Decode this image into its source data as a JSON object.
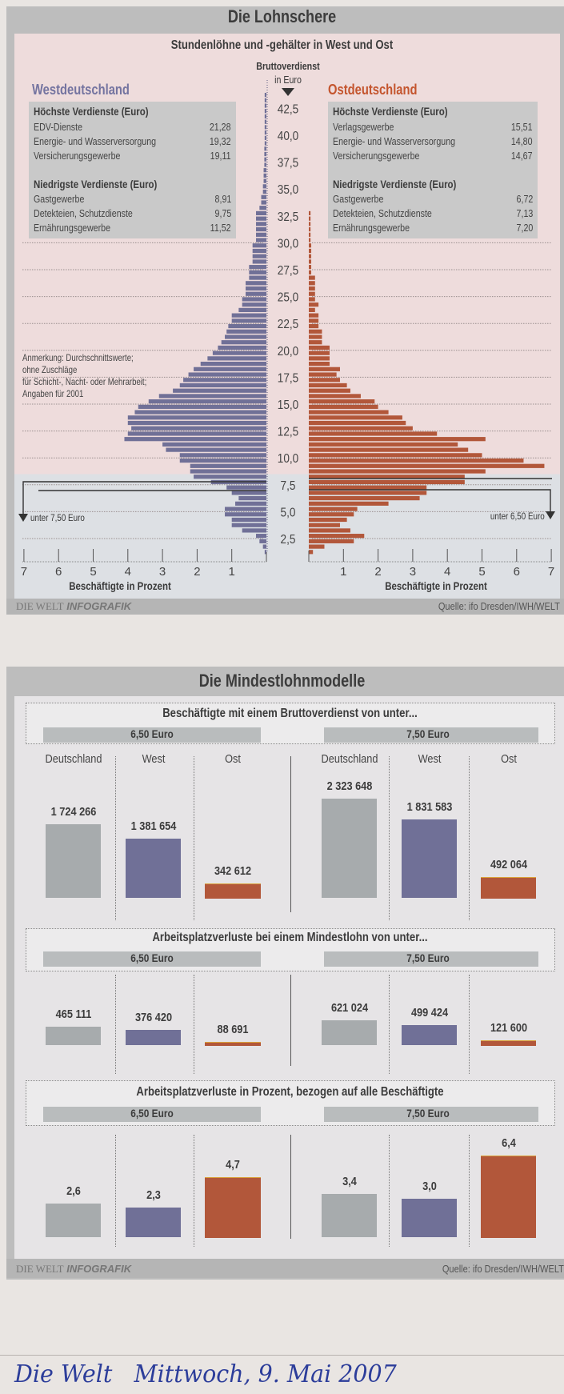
{
  "colors": {
    "west": "#707097",
    "east": "#b2573a",
    "germany": "#a7abad",
    "west_heading": "#7474a0",
    "east_heading": "#c4552e",
    "frame": "#bdbdbd",
    "panel": "#eedede"
  },
  "lohnschere": {
    "title": "Die Lohnschere",
    "subtitle": "Stundenlöhne und -gehälter in West und Ost",
    "axis_title": "Bruttoverdienst",
    "axis_unit": "in Euro",
    "west": {
      "heading": "Westdeutschland",
      "high_title": "Höchste Verdienste (Euro)",
      "high": [
        {
          "name": "EDV-Dienste",
          "value": "21,28"
        },
        {
          "name": "Energie- und Wasserversorgung",
          "value": "19,32"
        },
        {
          "name": "Versicherungsgewerbe",
          "value": "19,11"
        }
      ],
      "low_title": "Niedrigste Verdienste (Euro)",
      "low": [
        {
          "name": "Gastgewerbe",
          "value": "8,91"
        },
        {
          "name": "Detekteien, Schutzdienste",
          "value": "9,75"
        },
        {
          "name": "Ernährungsgewerbe",
          "value": "11,52"
        }
      ],
      "threshold_label": "unter 7,50 Euro",
      "xlabel": "Beschäftigte in Prozent"
    },
    "east": {
      "heading": "Ostdeutschland",
      "high_title": "Höchste Verdienste (Euro)",
      "high": [
        {
          "name": "Verlagsgewerbe",
          "value": "15,51"
        },
        {
          "name": "Energie- und Wasserversorgung",
          "value": "14,80"
        },
        {
          "name": "Versicherungsgewerbe",
          "value": "14,67"
        }
      ],
      "low_title": "Niedrigste Verdienste (Euro)",
      "low": [
        {
          "name": "Gastgewerbe",
          "value": "6,72"
        },
        {
          "name": "Detekteien, Schutzdienste",
          "value": "7,13"
        },
        {
          "name": "Ernährungsgewerbe",
          "value": "7,20"
        }
      ],
      "threshold_label": "unter 6,50 Euro",
      "xlabel": "Beschäftigte in Prozent"
    },
    "note": [
      "Anmerkung: Durchschnittswerte;",
      "ohne Zuschläge",
      "für Schicht-, Nacht- oder Mehrarbeit;",
      "Angaben für 2001"
    ],
    "y_ticks": [
      "2,5",
      "5,0",
      "7,5",
      "10,0",
      "12,5",
      "15,0",
      "17,5",
      "20,0",
      "22,5",
      "25,0",
      "27,5",
      "30,0",
      "32,5",
      "35,0",
      "37,5",
      "40,0",
      "42,5"
    ],
    "x_ticks_west": [
      "7",
      "6",
      "5",
      "4",
      "3",
      "2",
      "1"
    ],
    "x_ticks_east": [
      "1",
      "2",
      "3",
      "4",
      "5",
      "6",
      "7"
    ],
    "brand": "DIE WELT",
    "brand_suffix": "INFOGRAFIK",
    "source": "Quelle: ifo Dresden/IWH/WELT"
  },
  "chart_data": [
    {
      "type": "bar",
      "orientation": "horizontal-pyramid",
      "title": "Stundenlöhne und -gehälter in West und Ost",
      "ylabel": "Bruttoverdienst in Euro",
      "xlabel": "Beschäftigte in Prozent",
      "ylim": [
        0,
        45
      ],
      "xlim": [
        0,
        7
      ],
      "bin_start": 1.0,
      "bin_width": 0.5,
      "thresholds": {
        "west": 7.5,
        "east": 6.5
      },
      "grid": true,
      "series": [
        {
          "name": "Westdeutschland",
          "values": [
            0.05,
            0.1,
            0.2,
            0.3,
            0.7,
            1.0,
            1.0,
            1.2,
            1.2,
            0.9,
            0.8,
            1.0,
            1.15,
            1.6,
            2.1,
            2.2,
            2.2,
            2.5,
            2.5,
            2.9,
            3.0,
            4.1,
            4.0,
            3.9,
            4.0,
            4.0,
            3.8,
            3.7,
            3.4,
            3.1,
            2.7,
            2.5,
            2.4,
            2.25,
            2.1,
            1.9,
            1.7,
            1.55,
            1.4,
            1.3,
            1.2,
            1.15,
            1.1,
            1.0,
            1.0,
            0.8,
            0.7,
            0.7,
            0.6,
            0.6,
            0.6,
            0.5,
            0.5,
            0.5,
            0.4,
            0.4,
            0.4,
            0.4,
            0.3,
            0.3,
            0.3,
            0.3,
            0.3,
            0.3,
            0.2,
            0.15,
            0.15,
            0.1,
            0.1,
            0.08,
            0.08,
            0.08,
            0.06,
            0.06,
            0.06,
            0.06,
            0.05,
            0.05,
            0.05,
            0.05,
            0.05,
            0.05,
            0.05,
            0.05,
            0.05,
            0.05
          ]
        },
        {
          "name": "Ostdeutschland",
          "values": [
            0.12,
            0.45,
            1.3,
            1.6,
            1.2,
            0.9,
            1.1,
            1.3,
            1.4,
            2.3,
            3.2,
            3.4,
            3.4,
            4.5,
            4.5,
            5.1,
            6.8,
            6.2,
            5.0,
            4.6,
            4.3,
            5.1,
            3.7,
            3.0,
            2.8,
            2.7,
            2.3,
            2.0,
            1.9,
            1.5,
            1.2,
            1.1,
            0.9,
            0.8,
            0.9,
            0.6,
            0.6,
            0.6,
            0.6,
            0.38,
            0.38,
            0.38,
            0.28,
            0.28,
            0.28,
            0.18,
            0.28,
            0.18,
            0.18,
            0.18,
            0.18,
            0.18,
            0.07,
            0.07,
            0.07,
            0.07,
            0.07,
            0.07,
            0.05,
            0.05,
            0.05,
            0.05,
            0.05,
            0.05
          ]
        }
      ]
    },
    {
      "type": "bar",
      "title": "Beschäftigte mit einem Bruttoverdienst von unter...",
      "groups": [
        "6,50 Euro",
        "7,50 Euro"
      ],
      "categories": [
        "Deutschland",
        "West",
        "Ost"
      ],
      "values": [
        [
          1724266,
          1381654,
          342612
        ],
        [
          2323648,
          1831583,
          492064
        ]
      ],
      "labels": [
        [
          "1 724 266",
          "1 381 654",
          "342 612"
        ],
        [
          "2 323 648",
          "1 831 583",
          "492 064"
        ]
      ]
    },
    {
      "type": "bar",
      "title": "Arbeitsplatzverluste bei einem Mindestlohn von unter...",
      "groups": [
        "6,50 Euro",
        "7,50 Euro"
      ],
      "categories": [
        "Deutschland",
        "West",
        "Ost"
      ],
      "values": [
        [
          465111,
          376420,
          88691
        ],
        [
          621024,
          499424,
          121600
        ]
      ],
      "labels": [
        [
          "465 111",
          "376 420",
          "88 691"
        ],
        [
          "621 024",
          "499 424",
          "121 600"
        ]
      ]
    },
    {
      "type": "bar",
      "title": "Arbeitsplatzverluste in Prozent, bezogen auf alle Beschäftigte",
      "groups": [
        "6,50 Euro",
        "7,50 Euro"
      ],
      "categories": [
        "Deutschland",
        "West",
        "Ost"
      ],
      "values": [
        [
          2.6,
          2.3,
          4.7
        ],
        [
          3.4,
          3.0,
          6.4
        ]
      ],
      "labels": [
        [
          "2,6",
          "2,3",
          "4,7"
        ],
        [
          "3,4",
          "3,0",
          "6,4"
        ]
      ]
    }
  ],
  "mindestlohn": {
    "title": "Die Mindestlohnmodelle",
    "brand": "DIE WELT",
    "brand_suffix": "INFOGRAFIK",
    "source": "Quelle: ifo Dresden/IWH/WELT"
  },
  "handwriting": "Die Welt   Mittwoch, 9. Mai 2007"
}
